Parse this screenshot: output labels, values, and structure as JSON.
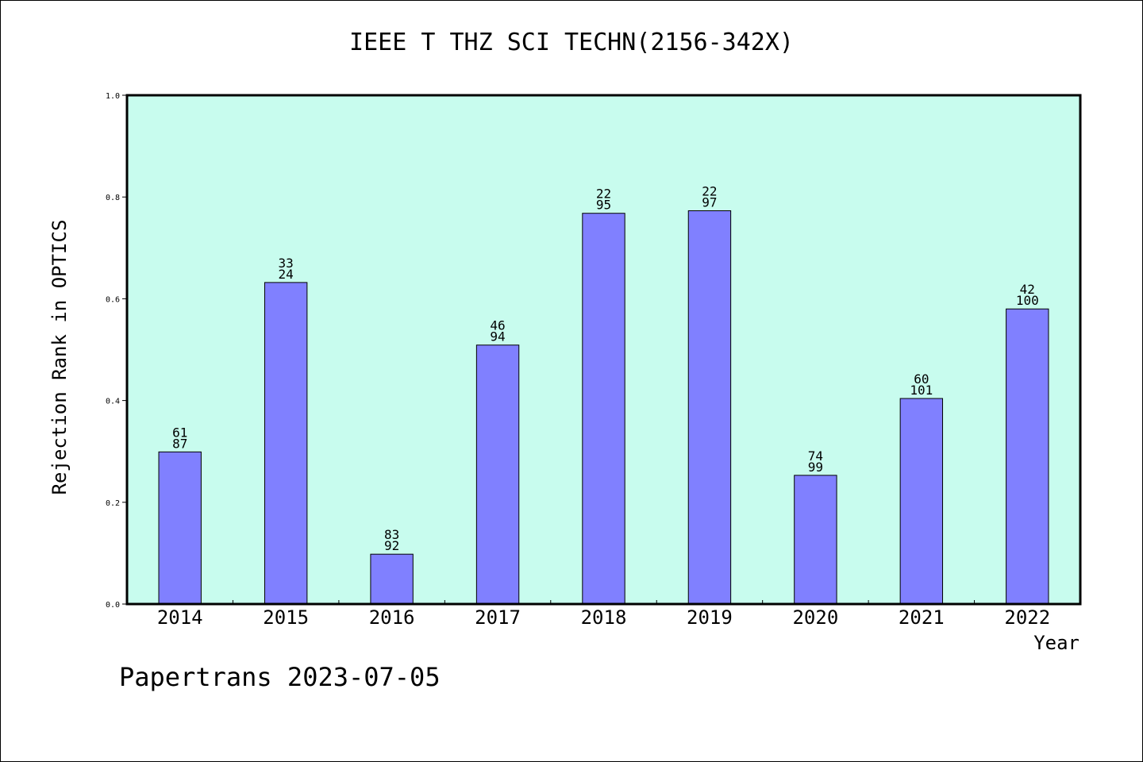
{
  "chart_data": {
    "type": "bar",
    "title": "IEEE T THZ SCI TECHN(2156-342X)",
    "xlabel": "Year",
    "ylabel": "Rejection Rank in OPTICS",
    "ylim": [
      0,
      1.0
    ],
    "yticks": [
      "0.0",
      "0.2",
      "0.4",
      "0.6",
      "0.8",
      "1.0"
    ],
    "categories": [
      "2014",
      "2015",
      "2016",
      "2017",
      "2018",
      "2019",
      "2020",
      "2021",
      "2022"
    ],
    "values": [
      0.299,
      0.632,
      0.098,
      0.509,
      0.768,
      0.773,
      0.253,
      0.404,
      0.58
    ],
    "labels_top": [
      "61",
      "33",
      "83",
      "46",
      "22",
      "22",
      "74",
      "60",
      "42"
    ],
    "labels_bottom": [
      "87",
      "24",
      "92",
      "94",
      "95",
      "97",
      "99",
      "101",
      "100"
    ],
    "grid": false,
    "colors": {
      "plot_bg": "#c8fcee",
      "bar": "#8080ff",
      "bar_edge": "#000000"
    }
  },
  "footer": "Papertrans 2023-07-05"
}
